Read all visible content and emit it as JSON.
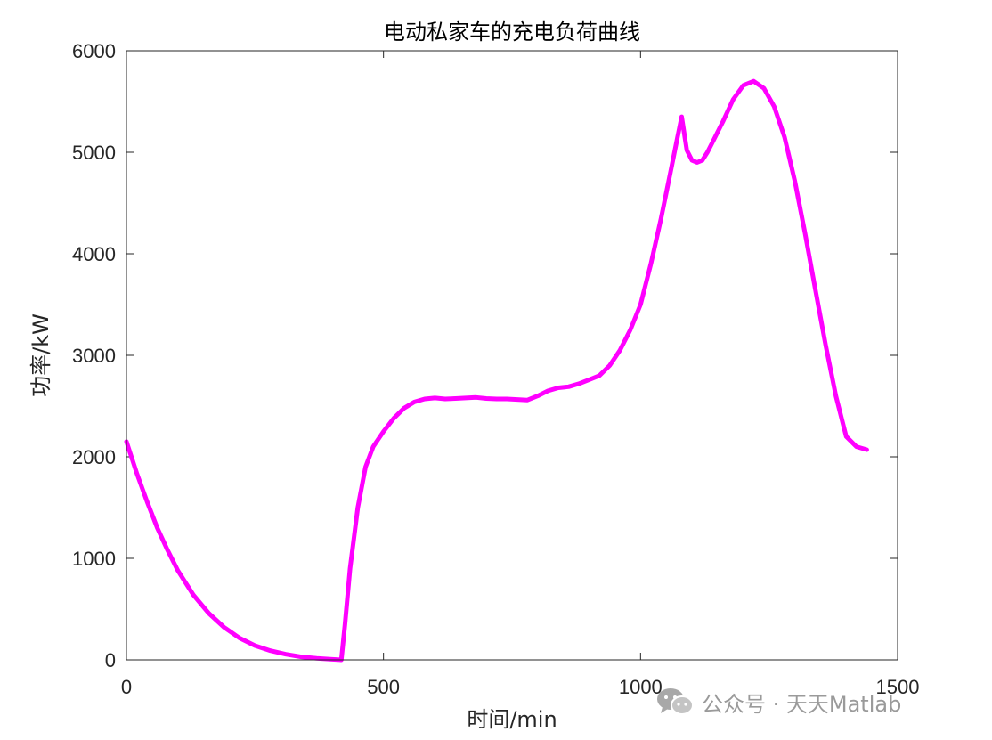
{
  "chart_data": {
    "type": "line",
    "title": "电动私家车的充电负荷曲线",
    "xlabel": "时间/min",
    "ylabel": "功率/kW",
    "xlim": [
      0,
      1500
    ],
    "ylim": [
      0,
      6000
    ],
    "xticks": [
      0,
      500,
      1000,
      1500
    ],
    "yticks": [
      0,
      1000,
      2000,
      3000,
      4000,
      5000,
      6000
    ],
    "grid": false,
    "series": [
      {
        "color": "#ff00ff",
        "x": [
          0,
          20,
          40,
          60,
          80,
          100,
          130,
          160,
          190,
          220,
          250,
          280,
          310,
          340,
          370,
          400,
          418,
          425,
          435,
          450,
          465,
          480,
          500,
          520,
          540,
          560,
          580,
          600,
          620,
          640,
          660,
          680,
          700,
          720,
          740,
          760,
          780,
          800,
          820,
          840,
          860,
          880,
          900,
          920,
          940,
          960,
          980,
          1000,
          1020,
          1040,
          1060,
          1070,
          1080,
          1090,
          1100,
          1110,
          1120,
          1130,
          1140,
          1160,
          1180,
          1200,
          1220,
          1240,
          1260,
          1280,
          1300,
          1320,
          1340,
          1360,
          1380,
          1400,
          1420,
          1440
        ],
        "y": [
          2150,
          1840,
          1560,
          1300,
          1080,
          880,
          640,
          460,
          320,
          215,
          140,
          90,
          55,
          30,
          15,
          5,
          0,
          350,
          900,
          1500,
          1900,
          2100,
          2250,
          2380,
          2480,
          2540,
          2570,
          2580,
          2570,
          2575,
          2580,
          2585,
          2575,
          2570,
          2570,
          2565,
          2560,
          2600,
          2650,
          2680,
          2690,
          2720,
          2760,
          2800,
          2900,
          3050,
          3250,
          3500,
          3900,
          4350,
          4850,
          5100,
          5350,
          5020,
          4920,
          4900,
          4920,
          5000,
          5100,
          5300,
          5520,
          5660,
          5700,
          5630,
          5450,
          5150,
          4720,
          4200,
          3650,
          3100,
          2600,
          2200,
          2100,
          2070
        ]
      }
    ]
  },
  "watermark": {
    "text": "公众号 · 天天Matlab",
    "icon": "wechat-icon"
  }
}
